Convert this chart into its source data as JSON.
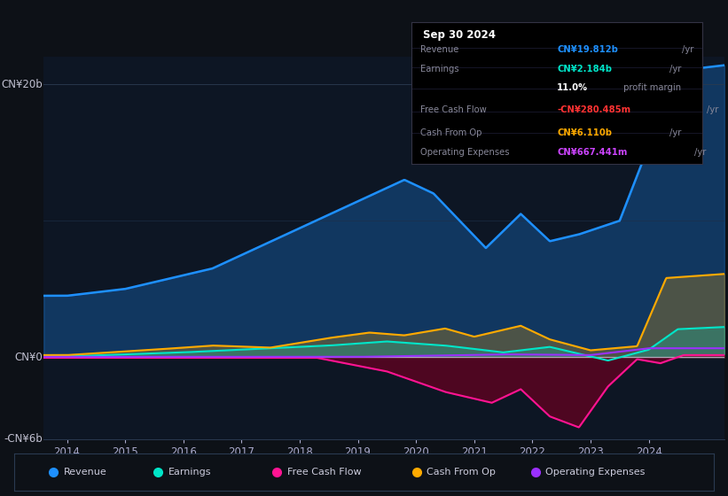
{
  "bg_color": "#0d1117",
  "plot_bg_color": "#0d1624",
  "grid_color": "#1e3048",
  "title_box": {
    "date": "Sep 30 2024",
    "rows": [
      {
        "label": "Revenue",
        "value": "CN¥19.812b",
        "unit": "/yr",
        "value_color": "#1e90ff"
      },
      {
        "label": "Earnings",
        "value": "CN¥2.184b",
        "unit": "/yr",
        "value_color": "#00e5c8"
      },
      {
        "label": "",
        "value": "11.0%",
        "unit": " profit margin",
        "value_color": "#ffffff"
      },
      {
        "label": "Free Cash Flow",
        "value": "-CN¥280.485m",
        "unit": "/yr",
        "value_color": "#ff3333"
      },
      {
        "label": "Cash From Op",
        "value": "CN¥6.110b",
        "unit": "/yr",
        "value_color": "#ffaa00"
      },
      {
        "label": "Operating Expenses",
        "value": "CN¥667.441m",
        "unit": "/yr",
        "value_color": "#cc44ff"
      }
    ]
  },
  "ylim": [
    -6000000000.0,
    22000000000.0
  ],
  "xlim_start": 2013.6,
  "xlim_end": 2025.3,
  "xtick_years": [
    2014,
    2015,
    2016,
    2017,
    2018,
    2019,
    2020,
    2021,
    2022,
    2023,
    2024
  ],
  "colors": {
    "revenue": "#1e90ff",
    "earnings": "#00e5c8",
    "fcf": "#ff1493",
    "cashfromop": "#ffaa00",
    "opex": "#9b30ff"
  },
  "legend": [
    {
      "label": "Revenue",
      "color": "#1e90ff"
    },
    {
      "label": "Earnings",
      "color": "#00e5c8"
    },
    {
      "label": "Free Cash Flow",
      "color": "#ff1493"
    },
    {
      "label": "Cash From Op",
      "color": "#ffaa00"
    },
    {
      "label": "Operating Expenses",
      "color": "#9b30ff"
    }
  ]
}
